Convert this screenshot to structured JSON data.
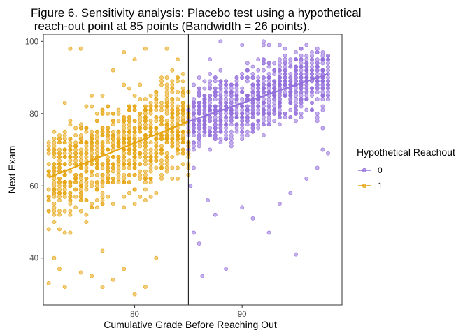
{
  "chart_data": {
    "type": "scatter",
    "title_lines": [
      "Figure 6. Sensitivity analysis: Placebo test using a hypothetical",
      " reach-out point at 85 points (Bandwidth = 26 points)."
    ],
    "xlabel": "Cumulative Grade Before Reaching Out",
    "ylabel": "Next Exam",
    "xlim": [
      71.5,
      99.3
    ],
    "ylim": [
      27,
      102
    ],
    "x_ticks": [
      80,
      90
    ],
    "y_ticks": [
      40,
      60,
      80,
      100
    ],
    "x_tick_labels": [
      "80",
      "90"
    ],
    "y_tick_labels": [
      "40",
      "60",
      "80",
      "100"
    ],
    "cutoff": 85,
    "grid": false,
    "legend": {
      "title": "Hypothetical Reachout",
      "position": "right"
    },
    "series": [
      {
        "name": "0",
        "color": "#9370DB",
        "x_range": [
          85,
          98
        ],
        "fit_line": [
          [
            85,
            77.8
          ],
          [
            98,
            91
          ]
        ],
        "sample_points": [
          [
            85.2,
            60
          ],
          [
            85.5,
            47
          ],
          [
            86,
            44
          ],
          [
            86.3,
            35
          ],
          [
            86.8,
            56
          ],
          [
            87.5,
            52
          ],
          [
            88.5,
            37
          ],
          [
            90,
            54
          ],
          [
            91,
            51
          ],
          [
            92.5,
            47
          ],
          [
            93.5,
            55
          ],
          [
            94.5,
            58
          ],
          [
            95,
            41
          ],
          [
            96,
            62
          ],
          [
            97,
            65
          ],
          [
            97.5,
            70
          ],
          [
            98,
            69
          ],
          [
            88,
            100
          ],
          [
            90,
            99
          ],
          [
            92,
            100
          ],
          [
            94,
            98
          ],
          [
            96,
            99
          ],
          [
            87,
            95
          ],
          [
            95,
            95
          ],
          [
            97,
            97
          ]
        ]
      },
      {
        "name": "1",
        "color": "#E6A40F",
        "x_range": [
          72,
          85
        ],
        "fit_line": [
          [
            72,
            62.3
          ],
          [
            85,
            77.8
          ]
        ],
        "sample_points": [
          [
            72,
            33
          ],
          [
            72.5,
            40
          ],
          [
            73,
            37
          ],
          [
            73.5,
            32
          ],
          [
            75,
            36
          ],
          [
            76,
            35
          ],
          [
            77,
            32
          ],
          [
            78,
            34
          ],
          [
            80,
            30
          ],
          [
            81,
            32
          ],
          [
            79,
            37
          ],
          [
            74,
            98
          ],
          [
            75,
            98
          ],
          [
            79,
            97
          ],
          [
            81,
            98
          ],
          [
            83,
            98
          ],
          [
            72.5,
            70
          ],
          [
            76,
            85
          ],
          [
            78,
            92
          ],
          [
            80,
            95
          ],
          [
            84,
            95
          ],
          [
            73,
            48
          ],
          [
            77,
            42
          ],
          [
            82,
            40
          ]
        ]
      }
    ]
  }
}
